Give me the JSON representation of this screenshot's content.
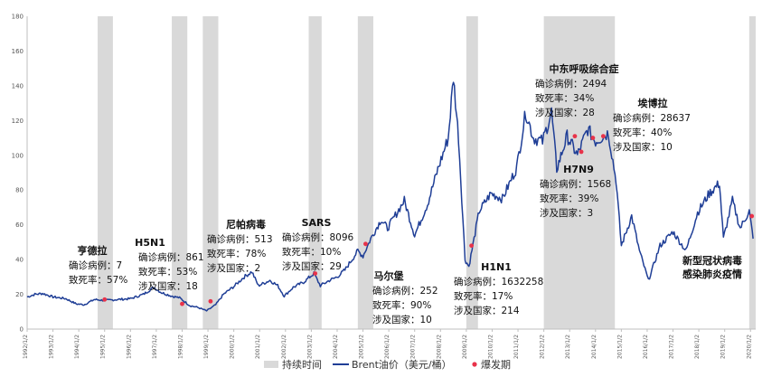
{
  "chart_data": {
    "type": "line",
    "title": "",
    "xlabel": "",
    "ylabel": "",
    "ylim": [
      0,
      180
    ],
    "yticks": [
      0,
      20,
      40,
      60,
      80,
      100,
      120,
      140,
      160,
      180
    ],
    "x_tick_labels": [
      "1992/1/2",
      "1993/1/2",
      "1994/1/2",
      "1995/1/2",
      "1996/1/2",
      "1997/1/2",
      "1998/1/2",
      "1999/1/2",
      "2000/1/2",
      "2001/1/2",
      "2002/1/2",
      "2003/1/2",
      "2004/1/2",
      "2005/1/2",
      "2006/1/2",
      "2007/1/2",
      "2008/1/2",
      "2009/1/2",
      "2010/1/2",
      "2011/1/2",
      "2012/1/2",
      "2013/1/2",
      "2014/1/2",
      "2015/1/2",
      "2016/1/2",
      "2017/1/2",
      "2018/1/2",
      "2019/1/2",
      "2020/1/2"
    ],
    "grid": false,
    "legend_position": "bottom",
    "legend": {
      "duration": "持续时间",
      "series": "Brent油价（美元/桶）",
      "outbreak": "爆发期"
    },
    "colors": {
      "line": "#1f3e96",
      "shade": "#d9d9d9",
      "marker": "#e8334a"
    },
    "series": [
      {
        "name": "Brent油价（美元/桶）",
        "points": [
          [
            1992.0,
            18.5
          ],
          [
            1992.3,
            20.0
          ],
          [
            1992.6,
            20.5
          ],
          [
            1993.0,
            18.5
          ],
          [
            1993.5,
            17.5
          ],
          [
            1993.9,
            14.5
          ],
          [
            1994.2,
            14.0
          ],
          [
            1994.6,
            17.0
          ],
          [
            1995.0,
            16.5
          ],
          [
            1995.5,
            17.0
          ],
          [
            1996.0,
            17.5
          ],
          [
            1996.5,
            20.0
          ],
          [
            1996.9,
            24.0
          ],
          [
            1997.2,
            21.0
          ],
          [
            1997.6,
            19.0
          ],
          [
            1997.9,
            18.0
          ],
          [
            1998.3,
            13.5
          ],
          [
            1998.6,
            12.5
          ],
          [
            1998.95,
            10.5
          ],
          [
            1999.3,
            14.0
          ],
          [
            1999.6,
            20.0
          ],
          [
            2000.0,
            24.5
          ],
          [
            2000.4,
            30.0
          ],
          [
            2000.7,
            33.0
          ],
          [
            2000.95,
            25.0
          ],
          [
            2001.4,
            28.0
          ],
          [
            2001.7,
            25.0
          ],
          [
            2001.95,
            19.0
          ],
          [
            2002.3,
            24.0
          ],
          [
            2002.7,
            27.0
          ],
          [
            2003.1,
            32.0
          ],
          [
            2003.35,
            25.0
          ],
          [
            2003.7,
            28.0
          ],
          [
            2004.0,
            30.0
          ],
          [
            2004.3,
            34.0
          ],
          [
            2004.8,
            45.0
          ],
          [
            2005.0,
            42.0
          ],
          [
            2005.3,
            52.0
          ],
          [
            2005.7,
            63.0
          ],
          [
            2005.95,
            58.0
          ],
          [
            2006.6,
            74.0
          ],
          [
            2007.0,
            54.0
          ],
          [
            2007.5,
            72.0
          ],
          [
            2007.9,
            92.0
          ],
          [
            2008.3,
            110.0
          ],
          [
            2008.5,
            145.0
          ],
          [
            2008.7,
            110.0
          ],
          [
            2008.95,
            40.0
          ],
          [
            2009.1,
            36.0
          ],
          [
            2009.5,
            68.0
          ],
          [
            2009.95,
            78.0
          ],
          [
            2010.4,
            75.0
          ],
          [
            2010.95,
            93.0
          ],
          [
            2011.3,
            125.0
          ],
          [
            2011.6,
            110.0
          ],
          [
            2011.95,
            108.0
          ],
          [
            2012.3,
            125.0
          ],
          [
            2012.5,
            92.0
          ],
          [
            2012.9,
            111.0
          ],
          [
            2013.3,
            100.0
          ],
          [
            2013.7,
            115.0
          ],
          [
            2014.0,
            108.0
          ],
          [
            2014.5,
            113.0
          ],
          [
            2014.8,
            85.0
          ],
          [
            2015.0,
            48.0
          ],
          [
            2015.4,
            65.0
          ],
          [
            2015.7,
            45.0
          ],
          [
            2016.05,
            28.0
          ],
          [
            2016.5,
            48.0
          ],
          [
            2017.0,
            56.0
          ],
          [
            2017.5,
            45.0
          ],
          [
            2017.95,
            67.0
          ],
          [
            2018.4,
            78.0
          ],
          [
            2018.8,
            84.0
          ],
          [
            2018.95,
            52.0
          ],
          [
            2019.3,
            74.0
          ],
          [
            2019.6,
            58.0
          ],
          [
            2019.95,
            68.0
          ],
          [
            2020.1,
            52.0
          ]
        ]
      }
    ],
    "outbreak_periods": [
      {
        "name": "亨德拉",
        "start": 1994.73,
        "end": 1995.32
      },
      {
        "name": "H5N1",
        "start": 1997.6,
        "end": 1998.2
      },
      {
        "name": "尼帕病毒",
        "start": 1998.8,
        "end": 1999.4
      },
      {
        "name": "SARS",
        "start": 2002.9,
        "end": 2003.4
      },
      {
        "name": "马尔堡",
        "start": 2004.8,
        "end": 2005.4
      },
      {
        "name": "H1N1",
        "start": 2009.0,
        "end": 2009.45
      },
      {
        "name": "中东呼吸综合症",
        "start": 2012.0,
        "end": 2014.75
      },
      {
        "name": "新型冠状病毒感染肺炎疫情",
        "start": 2019.95,
        "end": 2020.2
      }
    ],
    "outbreak_points": [
      [
        1995.0,
        17.0
      ],
      [
        1998.0,
        14.5
      ],
      [
        1999.1,
        16.0
      ],
      [
        2003.15,
        32.0
      ],
      [
        2005.1,
        49.0
      ],
      [
        2009.2,
        48.0
      ],
      [
        2013.2,
        111.0
      ],
      [
        2013.45,
        102.0
      ],
      [
        2013.9,
        110.0
      ],
      [
        2014.3,
        111.0
      ],
      [
        2020.05,
        65.0
      ]
    ]
  },
  "annotations": [
    {
      "title": "亨德拉",
      "lines": [
        "确诊病例：7",
        "致死率：57%"
      ]
    },
    {
      "title": "H5N1",
      "lines": [
        "确诊病例：861",
        "致死率：53%",
        "涉及国家：18"
      ]
    },
    {
      "title": "尼帕病毒",
      "lines": [
        "确诊病例：513",
        "致死率：78%",
        "涉及国家：2"
      ]
    },
    {
      "title": "SARS",
      "lines": [
        "确诊病例：8096",
        "致死率：10%",
        "涉及国家：29"
      ]
    },
    {
      "title": "马尔堡",
      "lines": [
        "确诊病例：252",
        "致死率：90%",
        "涉及国家：10"
      ]
    },
    {
      "title": "H1N1",
      "lines": [
        "确诊病例：1632258",
        "致死率：17%",
        "涉及国家：214"
      ]
    },
    {
      "title": "中东呼吸综合症",
      "lines": [
        "确诊病例：2494",
        "致死率：34%",
        "涉及国家：28"
      ]
    },
    {
      "title": "H7N9",
      "lines": [
        "确诊病例：1568",
        "致死率：39%",
        "涉及国家：3"
      ]
    },
    {
      "title": "埃博拉",
      "lines": [
        "确诊病例：28637",
        "致死率：40%",
        "涉及国家：10"
      ]
    },
    {
      "title": "新型冠状病毒",
      "lines": [
        "感染肺炎疫情"
      ]
    }
  ]
}
